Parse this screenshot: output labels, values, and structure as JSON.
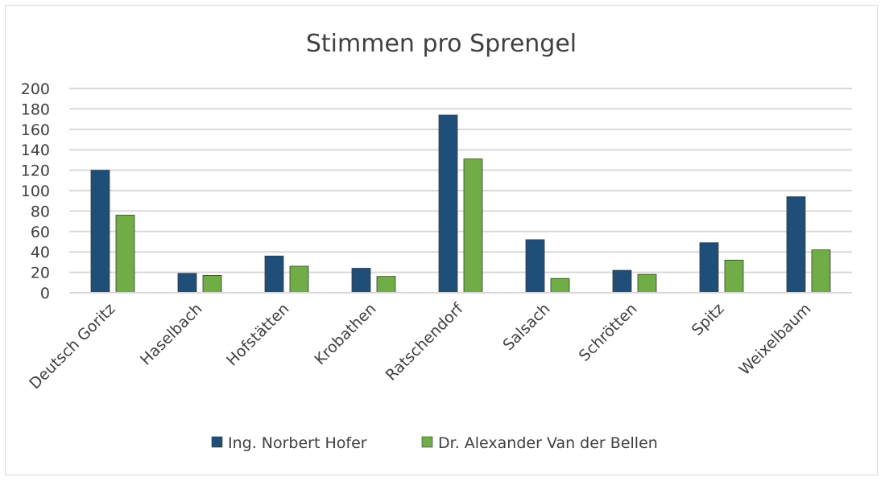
{
  "chart_data": {
    "type": "bar",
    "title": "Stimmen pro Sprengel",
    "xlabel": "",
    "ylabel": "",
    "ylim": [
      0,
      200
    ],
    "yticks": [
      0,
      20,
      40,
      60,
      80,
      100,
      120,
      140,
      160,
      180,
      200
    ],
    "grid": true,
    "legend_position": "bottom",
    "categories": [
      "Deutsch Goritz",
      "Haselbach",
      "Hofstätten",
      "Krobathen",
      "Ratschendorf",
      "Salsach",
      "Schrötten",
      "Spitz",
      "Weixelbaum"
    ],
    "series": [
      {
        "name": "Ing. Norbert Hofer",
        "color": "#1f4e79",
        "values": [
          120,
          19,
          36,
          24,
          174,
          52,
          22,
          49,
          94
        ]
      },
      {
        "name": "Dr. Alexander Van der Bellen",
        "color": "#70ad47",
        "values": [
          76,
          17,
          26,
          16,
          131,
          14,
          18,
          32,
          42
        ]
      }
    ]
  }
}
